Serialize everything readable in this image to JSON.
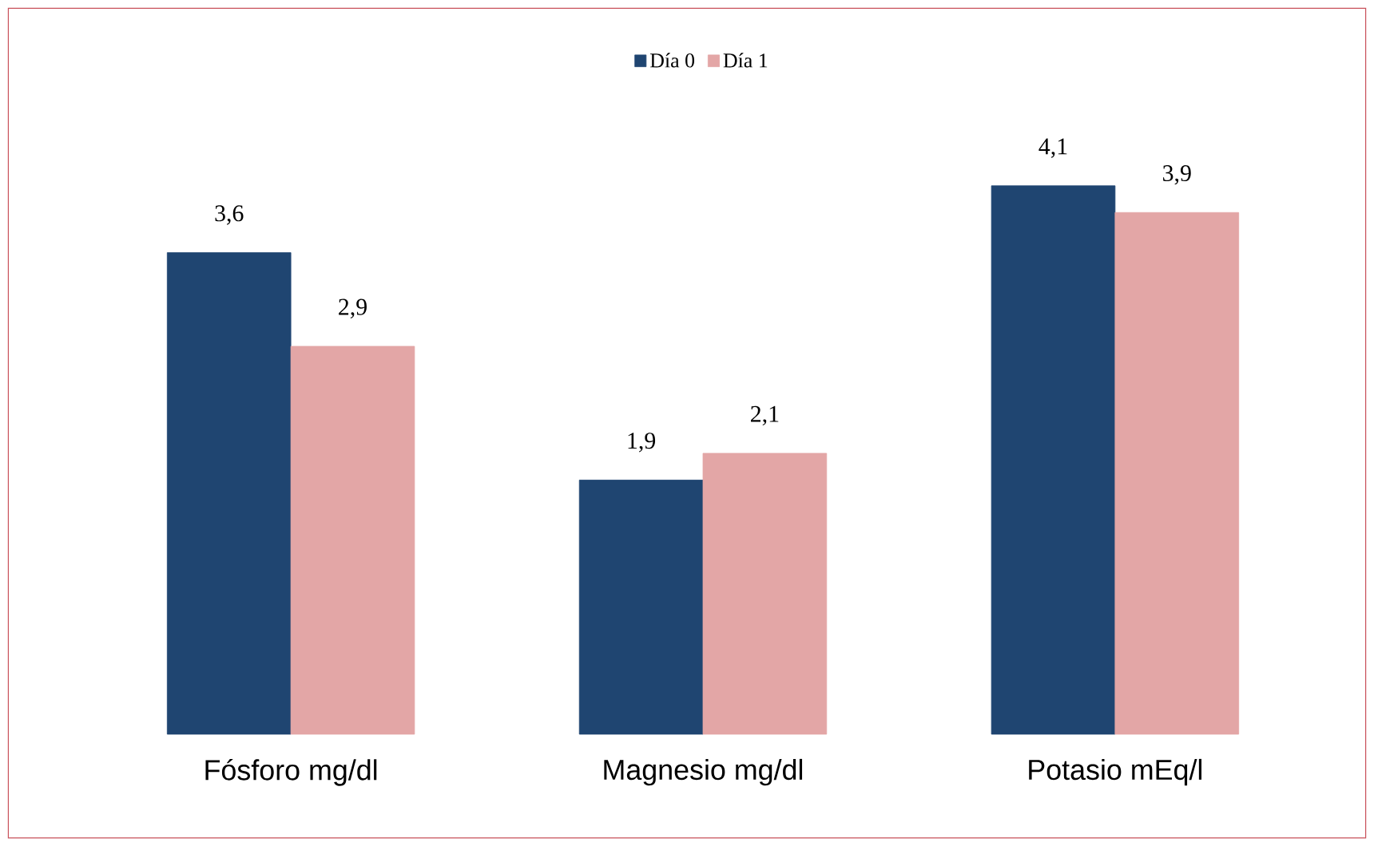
{
  "chart_data": {
    "type": "bar",
    "categories": [
      "Fósforo mg/dl",
      "Magnesio mg/dl",
      "Potasio mEq/l"
    ],
    "series": [
      {
        "name": "Día 0",
        "color": "#1f4571",
        "values": [
          3.6,
          1.9,
          4.1
        ],
        "value_labels": [
          "3,6",
          "1,9",
          "4,1"
        ]
      },
      {
        "name": "Día 1",
        "color": "#e3a6a6",
        "values": [
          2.9,
          2.1,
          3.9
        ],
        "value_labels": [
          "2,9",
          "2,1",
          "3,9"
        ]
      }
    ],
    "legend": "top"
  }
}
